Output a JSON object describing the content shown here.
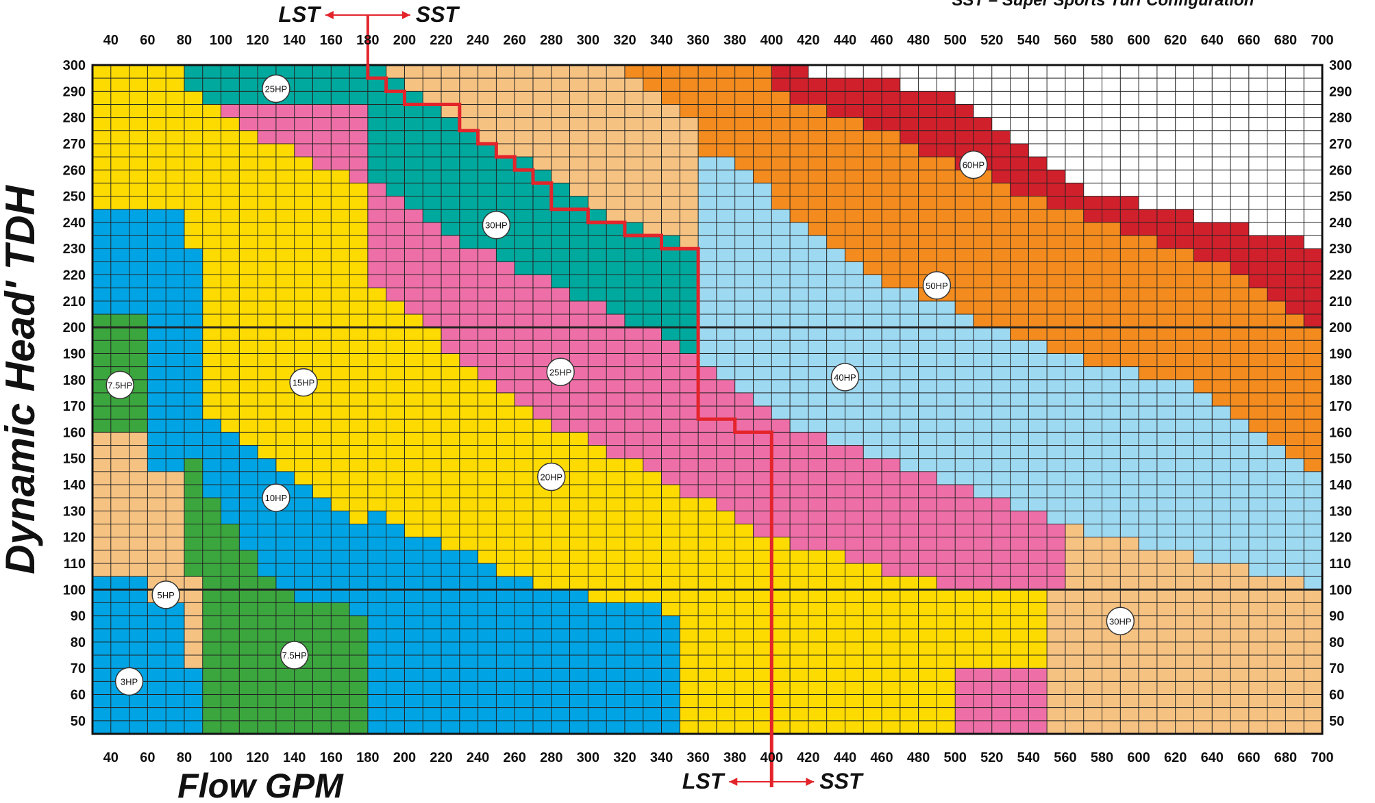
{
  "chart_data": {
    "type": "heatmap",
    "title": "",
    "top_note": "SST – Super Sports Turf Configuration",
    "xlabel": "Flow GPM",
    "ylabel": "Dynamic Head' TDH",
    "x_ticks": [
      40,
      60,
      80,
      100,
      120,
      140,
      160,
      180,
      200,
      220,
      240,
      260,
      280,
      300,
      320,
      340,
      360,
      380,
      400,
      420,
      440,
      460,
      480,
      500,
      520,
      540,
      560,
      580,
      600,
      620,
      640,
      660,
      680,
      700
    ],
    "y_ticks": [
      300,
      290,
      280,
      270,
      260,
      250,
      240,
      230,
      220,
      210,
      200,
      190,
      180,
      170,
      160,
      150,
      140,
      130,
      120,
      110,
      100,
      90,
      80,
      70,
      60,
      50
    ],
    "xlim": [
      30,
      700
    ],
    "ylim": [
      45,
      300
    ],
    "cell_x": 10,
    "cell_y": 5,
    "zone_colors": {
      "3HP": "#00a4e4",
      "5HP": "#f6c282",
      "7.5HP": "#3ba63e",
      "10HP": "#00a4e4",
      "15HP": "#fedb00",
      "20HP": "#ee6fa7",
      "25HP": "#00a99d",
      "30HP": "#f6c282",
      "40HP": "#9ed9f2",
      "50HP": "#f38b1e",
      "60HP": "#d0202c"
    },
    "zone_labels": [
      {
        "text": "3HP",
        "x": 50,
        "y": 65
      },
      {
        "text": "5HP",
        "x": 70,
        "y": 98
      },
      {
        "text": "7.5HP",
        "x": 45,
        "y": 178
      },
      {
        "text": "7.5HP",
        "x": 140,
        "y": 75
      },
      {
        "text": "10HP",
        "x": 130,
        "y": 135
      },
      {
        "text": "15HP",
        "x": 145,
        "y": 179
      },
      {
        "text": "20HP",
        "x": 280,
        "y": 143
      },
      {
        "text": "25HP",
        "x": 130,
        "y": 291
      },
      {
        "text": "25HP",
        "x": 285,
        "y": 183
      },
      {
        "text": "30HP",
        "x": 250,
        "y": 239
      },
      {
        "text": "30HP",
        "x": 590,
        "y": 88
      },
      {
        "text": "40HP",
        "x": 440,
        "y": 181
      },
      {
        "text": "50HP",
        "x": 490,
        "y": 216
      },
      {
        "text": "60HP",
        "x": 510,
        "y": 262
      }
    ],
    "divider": {
      "top_label_left": "LST",
      "top_label_right": "SST",
      "bottom_label_left": "LST",
      "bottom_label_right": "SST",
      "steps": [
        [
          180,
          300
        ],
        [
          180,
          295
        ],
        [
          190,
          295
        ],
        [
          190,
          290
        ],
        [
          200,
          290
        ],
        [
          200,
          285
        ],
        [
          230,
          285
        ],
        [
          230,
          275
        ],
        [
          240,
          275
        ],
        [
          240,
          270
        ],
        [
          250,
          270
        ],
        [
          250,
          265
        ],
        [
          260,
          265
        ],
        [
          260,
          260
        ],
        [
          270,
          260
        ],
        [
          270,
          255
        ],
        [
          280,
          255
        ],
        [
          280,
          245
        ],
        [
          300,
          245
        ],
        [
          300,
          240
        ],
        [
          320,
          240
        ],
        [
          320,
          235
        ],
        [
          340,
          235
        ],
        [
          340,
          230
        ],
        [
          360,
          230
        ],
        [
          360,
          165
        ],
        [
          380,
          165
        ],
        [
          380,
          160
        ],
        [
          400,
          160
        ],
        [
          400,
          45
        ]
      ]
    }
  }
}
